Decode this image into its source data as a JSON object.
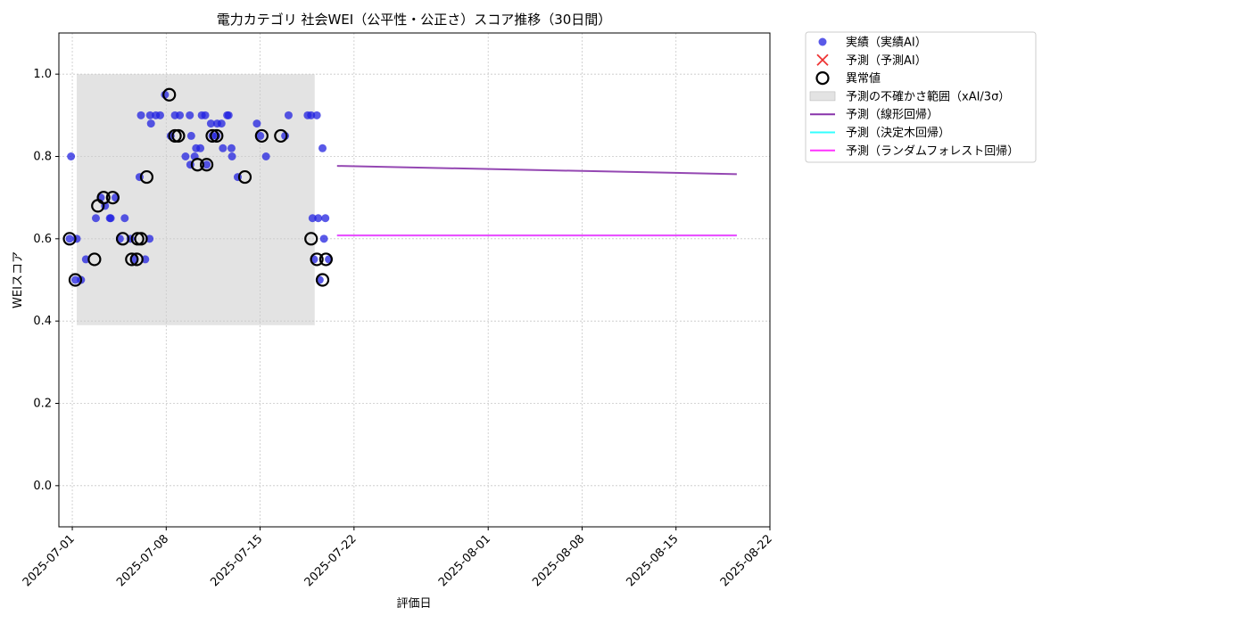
{
  "chart_data": {
    "type": "scatter",
    "title": "電力カテゴリ 社会WEI（公平性・公正さ）スコア推移（30日間）",
    "xlabel": "評価日",
    "ylabel": "WEIスコア",
    "xlim": [
      "2025-06-30",
      "2025-08-22"
    ],
    "ylim": [
      -0.1,
      1.1
    ],
    "x_ticks": [
      "2025-07-01",
      "2025-07-08",
      "2025-07-15",
      "2025-07-22",
      "2025-08-01",
      "2025-08-08",
      "2025-08-15",
      "2025-08-22"
    ],
    "y_ticks": [
      "0.0",
      "0.2",
      "0.4",
      "0.6",
      "0.8",
      "1.0"
    ],
    "grid": true,
    "legend_position": "outside-top-right",
    "colors": {
      "actual": "#2222e0",
      "predicted": "#ee3333",
      "anomaly": "#000000",
      "band": "#cccccc",
      "linear": "#8833aa",
      "tree": "#33ffff",
      "forest": "#ff33ff"
    },
    "uncertainty_band": {
      "name": "予測の不確かさ範囲（xAI/3σ）",
      "x": [
        "2025-07-01",
        "2025-07-20"
      ],
      "y": [
        0.39,
        1.0
      ]
    },
    "series": [
      {
        "name": "実績（実績AI）",
        "kind": "scatter",
        "points": [
          [
            "2025-07-01",
            0.6
          ],
          [
            "2025-07-01",
            0.5
          ],
          [
            "2025-07-01",
            0.5
          ],
          [
            "2025-07-01",
            0.8
          ],
          [
            "2025-07-01",
            0.6
          ],
          [
            "2025-07-02",
            0.65
          ],
          [
            "2025-07-02",
            0.55
          ],
          [
            "2025-07-03",
            0.68
          ],
          [
            "2025-07-03",
            0.65
          ],
          [
            "2025-07-03",
            0.7
          ],
          [
            "2025-07-04",
            0.6
          ],
          [
            "2025-07-04",
            0.65
          ],
          [
            "2025-07-04",
            0.7
          ],
          [
            "2025-07-05",
            0.55
          ],
          [
            "2025-07-05",
            0.65
          ],
          [
            "2025-07-05",
            0.6
          ],
          [
            "2025-07-06",
            0.6
          ],
          [
            "2025-07-06",
            0.75
          ],
          [
            "2025-07-06",
            0.55
          ],
          [
            "2025-07-06",
            0.88
          ],
          [
            "2025-07-06",
            0.9
          ],
          [
            "2025-07-07",
            0.9
          ],
          [
            "2025-07-07",
            0.9
          ],
          [
            "2025-07-07",
            0.9
          ],
          [
            "2025-07-08",
            0.9
          ],
          [
            "2025-07-08",
            0.95
          ],
          [
            "2025-07-08",
            0.85
          ],
          [
            "2025-07-09",
            0.9
          ],
          [
            "2025-07-09",
            0.9
          ],
          [
            "2025-07-09",
            0.8
          ],
          [
            "2025-07-09",
            0.85
          ],
          [
            "2025-07-10",
            0.8
          ],
          [
            "2025-07-10",
            0.82
          ],
          [
            "2025-07-10",
            0.78
          ],
          [
            "2025-07-10",
            0.82
          ],
          [
            "2025-07-10",
            0.9
          ],
          [
            "2025-07-11",
            0.9
          ],
          [
            "2025-07-11",
            0.88
          ],
          [
            "2025-07-11",
            0.85
          ],
          [
            "2025-07-11",
            0.78
          ],
          [
            "2025-07-11",
            0.85
          ],
          [
            "2025-07-12",
            0.82
          ],
          [
            "2025-07-12",
            0.88
          ],
          [
            "2025-07-12",
            0.9
          ],
          [
            "2025-07-12",
            0.88
          ],
          [
            "2025-07-12",
            0.82
          ],
          [
            "2025-07-12",
            0.9
          ],
          [
            "2025-07-13",
            0.8
          ],
          [
            "2025-07-13",
            0.75
          ],
          [
            "2025-07-14",
            0.88
          ],
          [
            "2025-07-15",
            0.85
          ],
          [
            "2025-07-15",
            0.8
          ],
          [
            "2025-07-16",
            0.85
          ],
          [
            "2025-07-17",
            0.9
          ],
          [
            "2025-07-18",
            0.9
          ],
          [
            "2025-07-19",
            0.9
          ],
          [
            "2025-07-19",
            0.9
          ],
          [
            "2025-07-19",
            0.82
          ],
          [
            "2025-07-19",
            0.65
          ],
          [
            "2025-07-19",
            0.65
          ],
          [
            "2025-07-19",
            0.6
          ],
          [
            "2025-07-19",
            0.55
          ],
          [
            "2025-07-19",
            0.5
          ],
          [
            "2025-07-19",
            0.65
          ],
          [
            "2025-07-20",
            0.55
          ]
        ]
      },
      {
        "name": "予測（予測AI）",
        "kind": "scatter-x",
        "points": []
      },
      {
        "name": "異常値",
        "kind": "anomaly",
        "points": [
          [
            "2025-07-01",
            0.6
          ],
          [
            "2025-07-01",
            0.5
          ],
          [
            "2025-07-02",
            0.55
          ],
          [
            "2025-07-03",
            0.68
          ],
          [
            "2025-07-03",
            0.7
          ],
          [
            "2025-07-04",
            0.6
          ],
          [
            "2025-07-04",
            0.7
          ],
          [
            "2025-07-05",
            0.55
          ],
          [
            "2025-07-05",
            0.6
          ],
          [
            "2025-07-06",
            0.6
          ],
          [
            "2025-07-06",
            0.75
          ],
          [
            "2025-07-06",
            0.55
          ],
          [
            "2025-07-08",
            0.95
          ],
          [
            "2025-07-08",
            0.85
          ],
          [
            "2025-07-09",
            0.85
          ],
          [
            "2025-07-10",
            0.78
          ],
          [
            "2025-07-11",
            0.85
          ],
          [
            "2025-07-11",
            0.78
          ],
          [
            "2025-07-11",
            0.85
          ],
          [
            "2025-07-13",
            0.75
          ],
          [
            "2025-07-15",
            0.85
          ],
          [
            "2025-07-16",
            0.85
          ],
          [
            "2025-07-19",
            0.6
          ],
          [
            "2025-07-19",
            0.55
          ],
          [
            "2025-07-19",
            0.5
          ],
          [
            "2025-07-20",
            0.55
          ]
        ]
      },
      {
        "name": "予測（線形回帰）",
        "kind": "line",
        "points": [
          [
            "2025-07-21",
            0.777
          ],
          [
            "2025-08-19",
            0.757
          ]
        ]
      },
      {
        "name": "予測（決定木回帰）",
        "kind": "line",
        "points": [
          [
            "2025-07-21",
            0.608
          ],
          [
            "2025-08-19",
            0.608
          ]
        ]
      },
      {
        "name": "予測（ランダムフォレスト回帰）",
        "kind": "line",
        "points": [
          [
            "2025-07-21",
            0.608
          ],
          [
            "2025-08-19",
            0.608
          ]
        ]
      }
    ]
  }
}
